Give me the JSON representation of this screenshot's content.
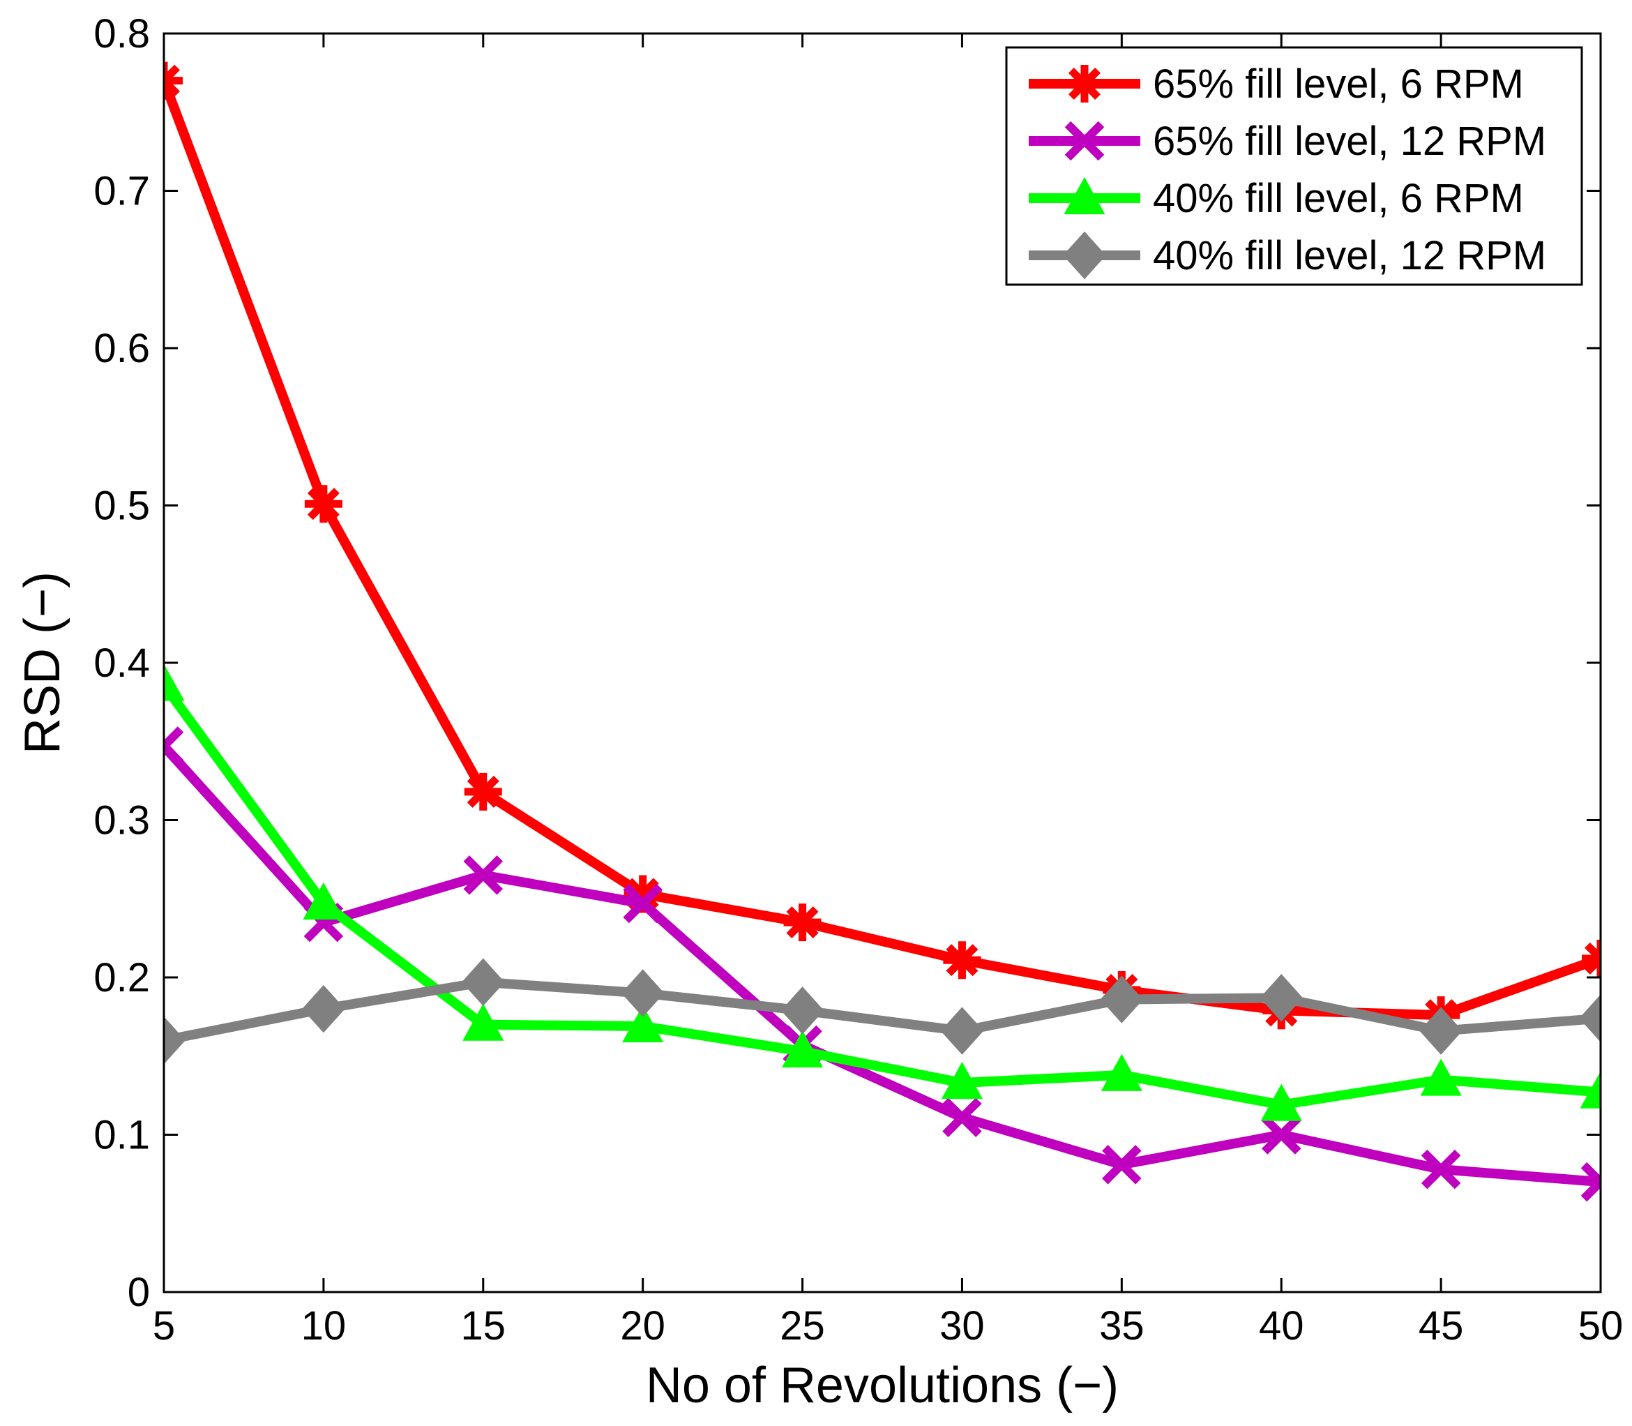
{
  "chart_data": {
    "type": "line",
    "title": "",
    "xlabel": "No of Revolutions (−)",
    "ylabel": "RSD (−)",
    "x": [
      5,
      10,
      15,
      20,
      25,
      30,
      35,
      40,
      45,
      50
    ],
    "xlim": [
      5,
      50
    ],
    "ylim": [
      0,
      0.8
    ],
    "xticks": [
      5,
      10,
      15,
      20,
      25,
      30,
      35,
      40,
      45,
      50
    ],
    "yticks": [
      0,
      0.1,
      0.2,
      0.3,
      0.4,
      0.5,
      0.6,
      0.7,
      0.8
    ],
    "ytick_labels": [
      "0",
      "0.1",
      "0.2",
      "0.3",
      "0.4",
      "0.5",
      "0.6",
      "0.7",
      "0.8"
    ],
    "grid": false,
    "legend_position": "top-right",
    "series": [
      {
        "name": "65% fill level, 6 RPM",
        "color": "#ff0000",
        "marker": "asterisk",
        "values": [
          0.77,
          0.501,
          0.318,
          0.253,
          0.235,
          0.211,
          0.192,
          0.179,
          0.176,
          0.212
        ]
      },
      {
        "name": "65% fill level, 12 RPM",
        "color": "#bf00bf",
        "marker": "x",
        "values": [
          0.347,
          0.235,
          0.265,
          0.247,
          0.157,
          0.111,
          0.081,
          0.1,
          0.078,
          0.07
        ]
      },
      {
        "name": "40% fill level, 6 RPM",
        "color": "#00ff00",
        "marker": "triangle",
        "values": [
          0.386,
          0.247,
          0.17,
          0.169,
          0.153,
          0.133,
          0.138,
          0.119,
          0.135,
          0.127
        ]
      },
      {
        "name": "40% fill level, 12 RPM",
        "color": "#808080",
        "marker": "diamond",
        "values": [
          0.16,
          0.18,
          0.197,
          0.19,
          0.179,
          0.166,
          0.186,
          0.187,
          0.166,
          0.174
        ]
      }
    ]
  }
}
